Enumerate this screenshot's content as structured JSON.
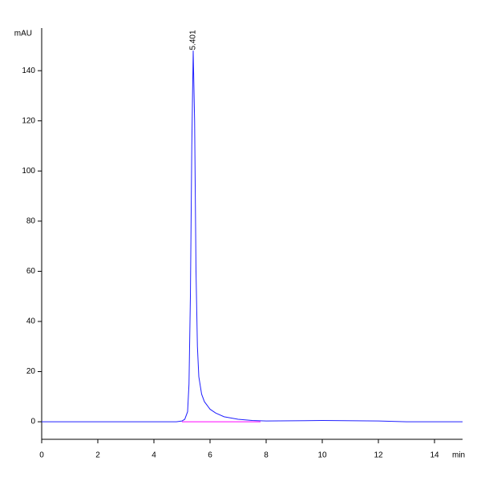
{
  "chart_data": {
    "type": "line",
    "y_label": "mAU",
    "x_label": "min",
    "series": [
      {
        "color": "#2020ff",
        "x": [
          0,
          4.8,
          5.0,
          5.1,
          5.2,
          5.25,
          5.3,
          5.35,
          5.4,
          5.45,
          5.5,
          5.55,
          5.6,
          5.7,
          5.8,
          6.0,
          6.2,
          6.5,
          7.0,
          7.5,
          8,
          10,
          12,
          13,
          15
        ],
        "values": [
          0,
          0,
          0.3,
          1,
          4,
          15,
          50,
          110,
          148,
          120,
          60,
          30,
          18,
          11,
          8,
          5,
          3.5,
          2,
          1,
          0.5,
          0.3,
          0.5,
          0.3,
          0,
          0
        ]
      },
      {
        "color": "#ff00ff",
        "x": [
          5.0,
          7.8
        ],
        "values": [
          0,
          0
        ]
      }
    ],
    "annotations": [
      {
        "text": "5.401",
        "x": 5.401
      }
    ],
    "xlim": [
      0,
      15
    ],
    "xticks": [
      0,
      2,
      4,
      6,
      8,
      10,
      12,
      14
    ],
    "ylim": [
      -7,
      157
    ],
    "yticks": [
      0,
      20,
      40,
      60,
      80,
      100,
      120,
      140
    ]
  }
}
